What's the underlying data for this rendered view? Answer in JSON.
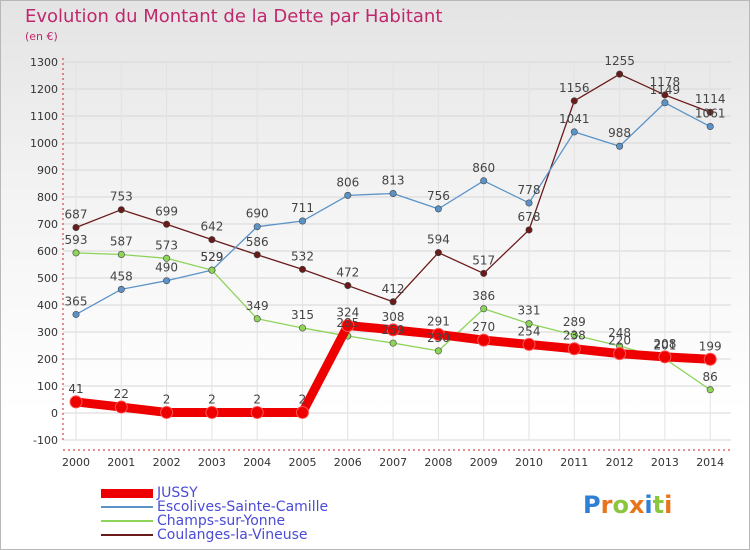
{
  "title": "Evolution du Montant de la Dette par Habitant",
  "subtitle": "(en €)",
  "logo_text": "Proxiti",
  "chart_data": {
    "type": "line",
    "title": "Evolution du Montant de la Dette par Habitant",
    "ylabel": "(en €)",
    "xlabel": "",
    "x": [
      "2000",
      "2001",
      "2002",
      "2003",
      "2004",
      "2005",
      "2006",
      "2007",
      "2008",
      "2009",
      "2010",
      "2011",
      "2012",
      "2013",
      "2014"
    ],
    "ylim": [
      -100,
      1300
    ],
    "yticks": [
      "-100",
      "0",
      "100",
      "200",
      "300",
      "400",
      "500",
      "600",
      "700",
      "800",
      "900",
      "1000",
      "1100",
      "1200",
      "1300"
    ],
    "grid": true,
    "legend_position": "bottom-left",
    "series": [
      {
        "name": "JUSSY",
        "color": "#ee0000",
        "values": [
          41,
          22,
          2,
          2,
          2,
          2,
          324,
          308,
          291,
          270,
          254,
          238,
          220,
          208,
          199
        ]
      },
      {
        "name": "Escolives-Sainte-Camille",
        "color": "#5b93c8",
        "values": [
          365,
          458,
          490,
          529,
          690,
          711,
          806,
          813,
          756,
          860,
          778,
          1041,
          988,
          1149,
          1061
        ]
      },
      {
        "name": "Champs-sur-Yonne",
        "color": "#8ed45a",
        "values": [
          593,
          587,
          573,
          529,
          349,
          315,
          285,
          259,
          230,
          386,
          331,
          289,
          248,
          201,
          86
        ]
      },
      {
        "name": "Coulanges-la-Vineuse",
        "color": "#6b1a1a",
        "values": [
          687,
          753,
          699,
          642,
          586,
          532,
          472,
          412,
          594,
          517,
          678,
          1156,
          1255,
          1178,
          1114
        ]
      }
    ]
  }
}
